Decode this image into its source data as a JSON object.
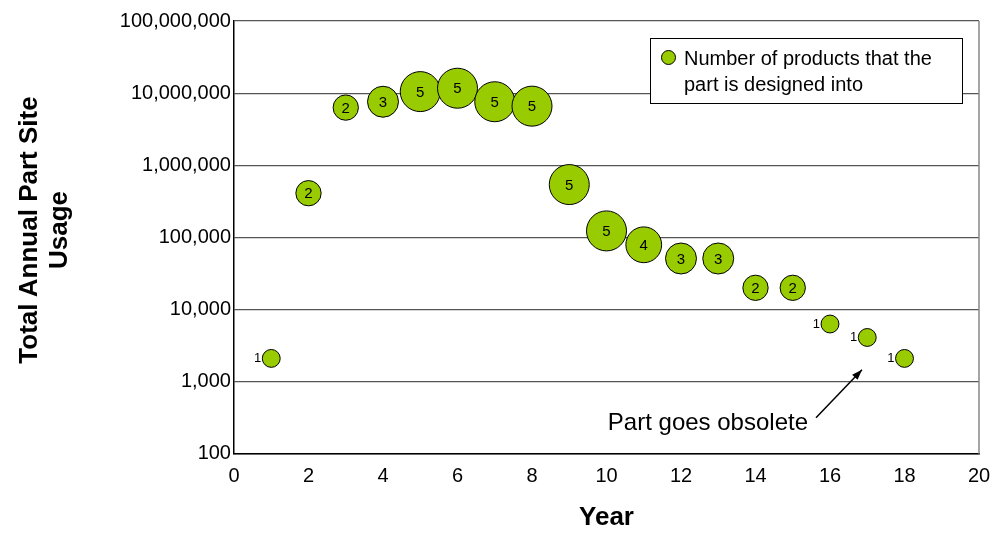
{
  "chart_data": {
    "type": "bubble",
    "xlabel": "Year",
    "ylabel": "Total Annual Part Site Usage",
    "x": [
      1,
      2,
      3,
      4,
      5,
      6,
      7,
      8,
      9,
      10,
      11,
      12,
      13,
      14,
      15,
      16,
      17,
      18
    ],
    "series": [
      {
        "name": "Number of products that the part is designed into",
        "color": "#99cc00",
        "values": [
          2100,
          410000,
          6300000,
          7600000,
          10500000,
          11700000,
          7600000,
          6600000,
          540000,
          123000,
          79000,
          51000,
          51000,
          20000,
          20000,
          6300,
          4100,
          2100
        ],
        "sizes": [
          1,
          2,
          2,
          3,
          5,
          5,
          5,
          5,
          5,
          5,
          4,
          3,
          3,
          2,
          2,
          1,
          1,
          1
        ],
        "value_labels": [
          "1",
          "2",
          "2",
          "3",
          "5",
          "5",
          "5",
          "5",
          "5",
          "5",
          "4",
          "3",
          "3",
          "2",
          "2",
          "1",
          "1",
          "1"
        ]
      }
    ],
    "xlim": [
      0,
      20
    ],
    "xticks": [
      0,
      2,
      4,
      6,
      8,
      10,
      12,
      14,
      16,
      18,
      20
    ],
    "ylim": [
      100,
      100000000
    ],
    "yticks": [
      {
        "value": 100,
        "label": "100"
      },
      {
        "value": 1000,
        "label": "1,000"
      },
      {
        "value": 10000,
        "label": "10,000"
      },
      {
        "value": 100000,
        "label": "100,000"
      },
      {
        "value": 1000000,
        "label": "1,000,000"
      },
      {
        "value": 10000000,
        "label": "10,000,000"
      },
      {
        "value": 100000000,
        "label": "100,000,000"
      }
    ],
    "log": "y",
    "grid": "y",
    "legend": "top right",
    "annotations": [
      "Part goes obsolete"
    ]
  }
}
